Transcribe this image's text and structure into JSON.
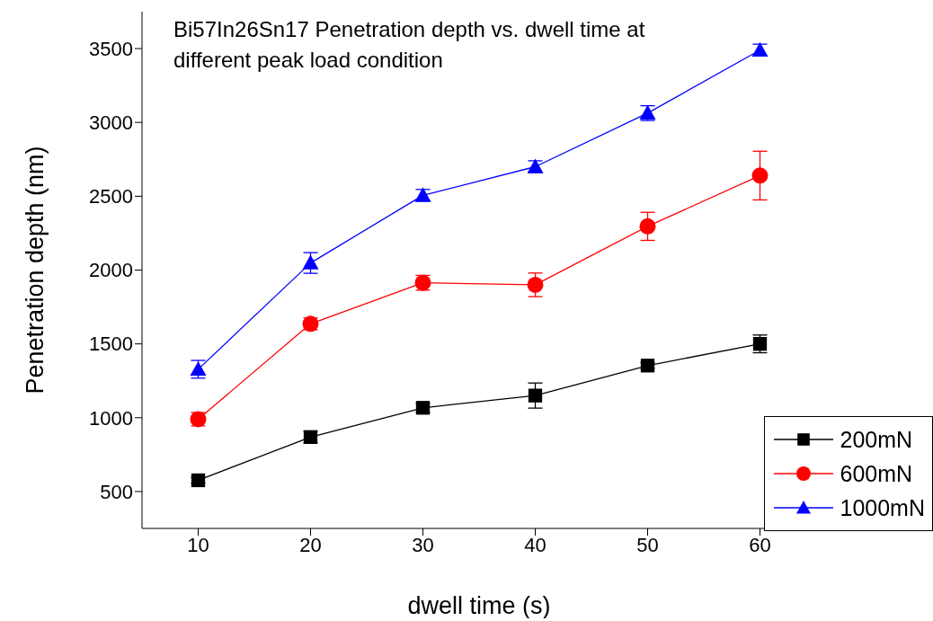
{
  "chart_data": {
    "type": "line",
    "title": "Bi57In26Sn17  Penetration depth vs. dwell time at different peak load condition",
    "xlabel": "dwell time (s)",
    "ylabel": "Penetration depth (nm)",
    "x": [
      10,
      20,
      30,
      40,
      50,
      60
    ],
    "series": [
      {
        "name": "200mN",
        "color": "#000000",
        "marker": "square",
        "values": [
          576,
          869,
          1067,
          1150,
          1353,
          1500
        ],
        "errors": [
          20,
          40,
          30,
          85,
          20,
          60
        ]
      },
      {
        "name": "600mN",
        "color": "#ff0000",
        "marker": "circle",
        "values": [
          990,
          1636,
          1914,
          1900,
          2296,
          2640
        ],
        "errors": [
          45,
          40,
          50,
          80,
          95,
          165
        ]
      },
      {
        "name": "1000mN",
        "color": "#0000ff",
        "marker": "triangle",
        "values": [
          1328,
          2048,
          2506,
          2700,
          3063,
          3490
        ],
        "errors": [
          60,
          70,
          40,
          40,
          50,
          40
        ]
      }
    ],
    "xlim": [
      5,
      65
    ],
    "xticks": [
      10,
      20,
      30,
      40,
      50,
      60
    ],
    "ylim": [
      250,
      3750
    ],
    "yticks": [
      500,
      1000,
      1500,
      2000,
      2500,
      3000,
      3500
    ],
    "grid": false,
    "legend": "bottom right",
    "line_style": "solid"
  }
}
